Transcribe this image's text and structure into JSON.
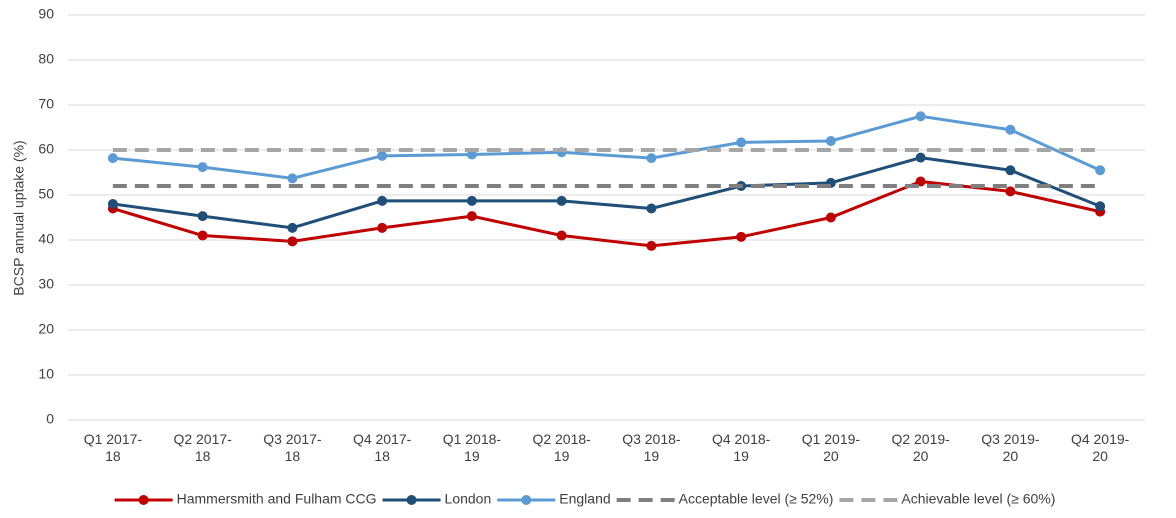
{
  "chart_data": {
    "type": "line",
    "y_label": "BCSP annual uptake (%)",
    "categories": [
      "Q1 2017-18",
      "Q2 2017-18",
      "Q3 2017-18",
      "Q4 2017-18",
      "Q1 2018-19",
      "Q2 2018-19",
      "Q3 2018-19",
      "Q4 2018-19",
      "Q1 2019-20",
      "Q2 2019-20",
      "Q3 2019-20",
      "Q4 2019-20"
    ],
    "series": [
      {
        "name": "Hammersmith and Fulham CCG",
        "color": "#c00000",
        "markers": true,
        "dashed": false,
        "values": [
          47,
          41,
          39.7,
          42.7,
          45.3,
          41,
          38.7,
          40.7,
          45,
          53,
          50.8,
          46.3
        ]
      },
      {
        "name": "London",
        "color": "#1f4e79",
        "markers": true,
        "dashed": false,
        "values": [
          48,
          45.3,
          42.7,
          48.7,
          48.7,
          48.7,
          47,
          52,
          52.7,
          58.3,
          55.5,
          47.5
        ]
      },
      {
        "name": "England",
        "color": "#5b9bd5",
        "markers": true,
        "dashed": false,
        "values": [
          58.2,
          56.2,
          53.7,
          58.7,
          59,
          59.5,
          58.2,
          61.7,
          62,
          67.5,
          64.5,
          55.5
        ]
      },
      {
        "name": "Acceptable level (≥ 52%)",
        "color": "#7f7f7f",
        "markers": false,
        "dashed": true,
        "values": [
          52,
          52,
          52,
          52,
          52,
          52,
          52,
          52,
          52,
          52,
          52,
          52
        ]
      },
      {
        "name": "Achievable level (≥ 60%)",
        "color": "#a6a6a6",
        "markers": false,
        "dashed": true,
        "values": [
          60,
          60,
          60,
          60,
          60,
          60,
          60,
          60,
          60,
          60,
          60,
          60
        ]
      }
    ],
    "ylim": [
      0,
      90
    ],
    "yticks": [
      0,
      10,
      20,
      30,
      40,
      50,
      60,
      70,
      80,
      90
    ],
    "grid": true
  }
}
